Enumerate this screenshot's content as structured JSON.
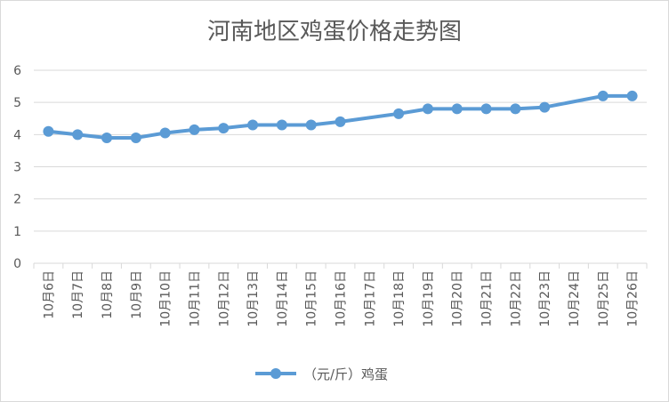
{
  "chart_data": {
    "type": "line",
    "title": "河南地区鸡蛋价格走势图",
    "categories": [
      "10月6日",
      "10月7日",
      "10月8日",
      "10月9日",
      "10月10日",
      "10月11日",
      "10月12日",
      "10月13日",
      "10月14日",
      "10月15日",
      "10月16日",
      "10月17日",
      "10月18日",
      "10月19日",
      "10月20日",
      "10月21日",
      "10月22日",
      "10月23日",
      "10月24日",
      "10月25日",
      "10月26日"
    ],
    "series": [
      {
        "name": "（元/斤）鸡蛋",
        "values": [
          4.1,
          4.0,
          3.9,
          3.9,
          4.05,
          4.15,
          4.2,
          4.3,
          4.3,
          4.3,
          4.4,
          null,
          4.65,
          4.8,
          4.8,
          4.8,
          4.8,
          4.85,
          null,
          5.2,
          5.2
        ],
        "color": "#5b9bd5"
      }
    ],
    "ylim": [
      0,
      6
    ],
    "yticks": [
      "0",
      "1",
      "2",
      "3",
      "4",
      "5",
      "6"
    ],
    "grid": true,
    "gridColor": "#d9d9d9",
    "legend": "bottom"
  }
}
